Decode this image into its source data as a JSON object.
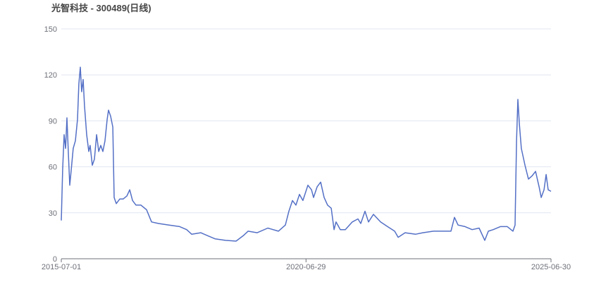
{
  "chart_data": {
    "type": "line",
    "title": "光智科技 - 300489(日线)",
    "xlabel": "",
    "ylabel": "",
    "xlim": [
      "2015-07-01",
      "2025-06-30"
    ],
    "ylim": [
      0,
      150
    ],
    "yticks": [
      0,
      30,
      60,
      90,
      120,
      150
    ],
    "xticks": [
      "2015-07-01",
      "2020-06-29",
      "2025-06-30"
    ],
    "grid": true,
    "colors": {
      "line": "#5470c6",
      "grid": "#e0e6f1",
      "axis": "#6e7079"
    },
    "points": [
      [
        "2015-07-01",
        25
      ],
      [
        "2015-07-11",
        58
      ],
      [
        "2015-07-22",
        81
      ],
      [
        "2015-08-02",
        72
      ],
      [
        "2015-08-12",
        92
      ],
      [
        "2015-08-23",
        68
      ],
      [
        "2015-09-02",
        48
      ],
      [
        "2015-09-13",
        58
      ],
      [
        "2015-09-28",
        72
      ],
      [
        "2015-10-14",
        77
      ],
      [
        "2015-10-30",
        91
      ],
      [
        "2015-11-09",
        114
      ],
      [
        "2015-11-20",
        125
      ],
      [
        "2015-11-30",
        109
      ],
      [
        "2015-12-11",
        117
      ],
      [
        "2015-12-21",
        100
      ],
      [
        "2016-01-06",
        81
      ],
      [
        "2016-01-22",
        70
      ],
      [
        "2016-02-01",
        74
      ],
      [
        "2016-02-17",
        61
      ],
      [
        "2016-03-04",
        65
      ],
      [
        "2016-03-20",
        81
      ],
      [
        "2016-04-05",
        70
      ],
      [
        "2016-04-20",
        74
      ],
      [
        "2016-05-06",
        70
      ],
      [
        "2016-05-22",
        77
      ],
      [
        "2016-06-07",
        91
      ],
      [
        "2016-06-17",
        97
      ],
      [
        "2016-07-03",
        93
      ],
      [
        "2016-07-19",
        86
      ],
      [
        "2016-07-29",
        40
      ],
      [
        "2016-08-14",
        36
      ],
      [
        "2016-09-09",
        39
      ],
      [
        "2016-10-05",
        39
      ],
      [
        "2016-11-01",
        41
      ],
      [
        "2016-11-22",
        45
      ],
      [
        "2016-12-13",
        38
      ],
      [
        "2017-01-08",
        35
      ],
      [
        "2017-02-14",
        35
      ],
      [
        "2017-03-28",
        32
      ],
      [
        "2017-05-04",
        24
      ],
      [
        "2017-06-25",
        23
      ],
      [
        "2017-09-12",
        22
      ],
      [
        "2017-11-30",
        21
      ],
      [
        "2018-01-21",
        19
      ],
      [
        "2018-02-27",
        16
      ],
      [
        "2018-05-06",
        17
      ],
      [
        "2018-06-28",
        15
      ],
      [
        "2018-08-20",
        13
      ],
      [
        "2018-11-06",
        12
      ],
      [
        "2019-01-24",
        11.5
      ],
      [
        "2019-03-18",
        15
      ],
      [
        "2019-04-24",
        18
      ],
      [
        "2019-07-01",
        17
      ],
      [
        "2019-09-18",
        20
      ],
      [
        "2019-12-06",
        18
      ],
      [
        "2020-01-27",
        22
      ],
      [
        "2020-02-22",
        31
      ],
      [
        "2020-03-20",
        38
      ],
      [
        "2020-04-15",
        35
      ],
      [
        "2020-05-11",
        42
      ],
      [
        "2020-06-06",
        38
      ],
      [
        "2020-07-13",
        48
      ],
      [
        "2020-08-09",
        45
      ],
      [
        "2020-08-24",
        40
      ],
      [
        "2020-09-20",
        47
      ],
      [
        "2020-10-16",
        50
      ],
      [
        "2020-11-11",
        40
      ],
      [
        "2020-12-07",
        35
      ],
      [
        "2021-01-03",
        33
      ],
      [
        "2021-01-24",
        19
      ],
      [
        "2021-02-08",
        24
      ],
      [
        "2021-03-12",
        19
      ],
      [
        "2021-04-18",
        19
      ],
      [
        "2021-06-09",
        24
      ],
      [
        "2021-07-21",
        26
      ],
      [
        "2021-08-11",
        23
      ],
      [
        "2021-09-12",
        31
      ],
      [
        "2021-10-08",
        24
      ],
      [
        "2021-11-14",
        29
      ],
      [
        "2022-01-06",
        24
      ],
      [
        "2022-02-27",
        21
      ],
      [
        "2022-04-21",
        18
      ],
      [
        "2022-05-17",
        14
      ],
      [
        "2022-07-08",
        17
      ],
      [
        "2022-09-25",
        16
      ],
      [
        "2022-11-17",
        17
      ],
      [
        "2023-02-04",
        18
      ],
      [
        "2023-04-23",
        18
      ],
      [
        "2023-06-15",
        18
      ],
      [
        "2023-07-11",
        27
      ],
      [
        "2023-08-07",
        22
      ],
      [
        "2023-09-28",
        21
      ],
      [
        "2023-11-20",
        19
      ],
      [
        "2024-01-11",
        20
      ],
      [
        "2024-02-22",
        12
      ],
      [
        "2024-03-20",
        18
      ],
      [
        "2024-04-25",
        19
      ],
      [
        "2024-06-17",
        21
      ],
      [
        "2024-08-08",
        21
      ],
      [
        "2024-09-19",
        18
      ],
      [
        "2024-10-05",
        22
      ],
      [
        "2024-10-16",
        77
      ],
      [
        "2024-10-26",
        104
      ],
      [
        "2024-11-06",
        88
      ],
      [
        "2024-11-21",
        72
      ],
      [
        "2024-12-18",
        61
      ],
      [
        "2025-01-13",
        52
      ],
      [
        "2025-02-08",
        54
      ],
      [
        "2025-03-07",
        57
      ],
      [
        "2025-04-02",
        47
      ],
      [
        "2025-04-18",
        40
      ],
      [
        "2025-05-09",
        45
      ],
      [
        "2025-05-25",
        55
      ],
      [
        "2025-06-09",
        45
      ],
      [
        "2025-06-30",
        44
      ]
    ]
  }
}
